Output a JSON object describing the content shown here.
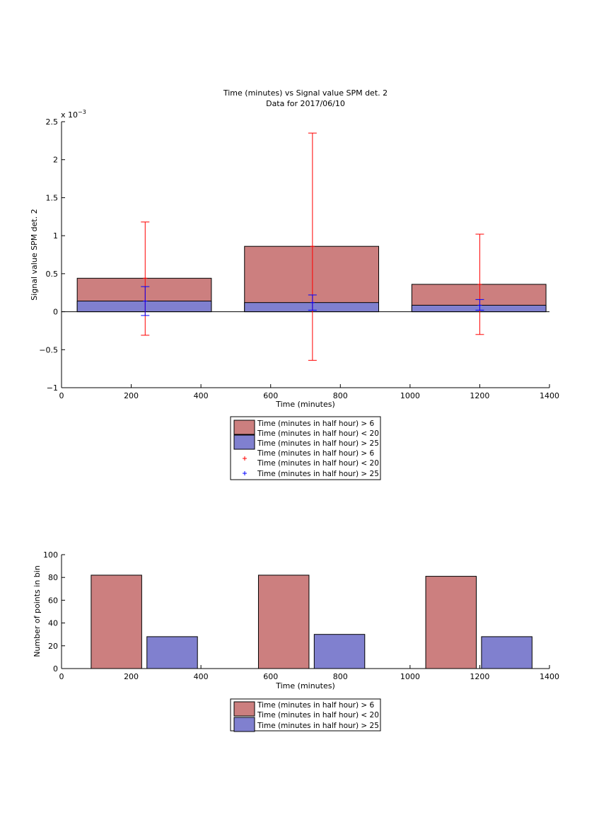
{
  "chart_data": [
    {
      "type": "bar",
      "title": "Time (minutes) vs Signal value SPM det. 2",
      "subtitle": "Data for 2017/06/10",
      "xlabel": "Time (minutes)",
      "ylabel": "Signal value SPM det. 2",
      "exponent_base": "x 10",
      "exponent_power": "−3",
      "xlim": [
        0,
        1400
      ],
      "ylim": [
        -1,
        2.5
      ],
      "xticks": [
        0,
        200,
        400,
        600,
        800,
        1000,
        1200,
        1400
      ],
      "yticks": [
        -1,
        -0.5,
        0,
        0.5,
        1,
        1.5,
        2,
        2.5
      ],
      "ytick_labels": [
        "−1",
        "−0.5",
        "0",
        "0.5",
        "1",
        "1.5",
        "2",
        "2.5"
      ],
      "bar_ranges": [
        [
          45,
          430
        ],
        [
          525,
          910
        ],
        [
          1005,
          1390
        ]
      ],
      "series": [
        {
          "name": "Time (minutes in half hour) > 6",
          "name2": "Time (minutes in half hour) < 20",
          "values": [
            0.44,
            0.86,
            0.36
          ],
          "color": "#cc7f7f"
        },
        {
          "name": "Time (minutes in half hour) > 25",
          "values": [
            0.14,
            0.12,
            0.085
          ],
          "color": "#8080cf"
        }
      ],
      "errorbars": [
        {
          "name": "Time (minutes in half hour) > 6",
          "name2": "Time (minutes in half hour) < 20",
          "color": "#ff0000",
          "marker": "+",
          "x": [
            240,
            720,
            1200
          ],
          "y": [
            0.44,
            0.86,
            0.36
          ],
          "lower": [
            -0.31,
            -0.64,
            -0.3
          ],
          "upper": [
            1.18,
            2.35,
            1.02
          ]
        },
        {
          "name": "Time (minutes in half hour) > 25",
          "color": "#0000ff",
          "marker": "+",
          "x": [
            240,
            720,
            1200
          ],
          "y": [
            0.14,
            0.12,
            0.085
          ],
          "lower": [
            -0.05,
            0.02,
            0.02
          ],
          "upper": [
            0.33,
            0.22,
            0.16
          ]
        }
      ],
      "legend_position": "below"
    },
    {
      "type": "bar",
      "xlabel": "Time (minutes)",
      "ylabel": "Number of points in bin",
      "xlim": [
        0,
        1400
      ],
      "ylim": [
        0,
        100
      ],
      "xticks": [
        0,
        200,
        400,
        600,
        800,
        1000,
        1200,
        1400
      ],
      "yticks": [
        0,
        20,
        40,
        60,
        80,
        100
      ],
      "series": [
        {
          "name": "Time (minutes in half hour) > 6",
          "name2": "Time (minutes in half hour) < 20",
          "color": "#cc7f7f",
          "x": [
            [
              85,
              230
            ],
            [
              565,
              710
            ],
            [
              1045,
              1190
            ]
          ],
          "values": [
            82,
            82,
            81
          ]
        },
        {
          "name": "Time (minutes in half hour) > 25",
          "color": "#8080cf",
          "x": [
            [
              245,
              390
            ],
            [
              725,
              870
            ],
            [
              1205,
              1350
            ]
          ],
          "values": [
            28,
            30,
            28
          ]
        }
      ],
      "legend_position": "below"
    }
  ]
}
